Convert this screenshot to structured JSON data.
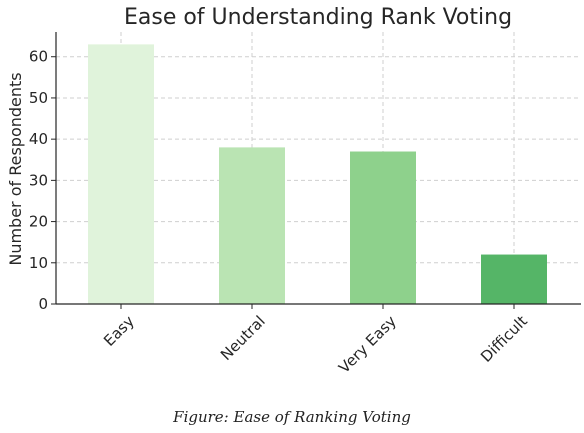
{
  "chart_data": {
    "type": "bar",
    "title": "Ease of Understanding Rank Voting",
    "xlabel": "",
    "ylabel": "Number of Respondents",
    "categories": [
      "Easy",
      "Neutral",
      "Very Easy",
      "Difficult"
    ],
    "values": [
      63,
      38,
      37,
      12
    ],
    "ylim": [
      0,
      66
    ],
    "yticks": [
      0,
      10,
      20,
      30,
      40,
      50,
      60
    ],
    "grid": true,
    "colors": [
      "#e0f3db",
      "#bae4b3",
      "#8ed18c",
      "#55b567"
    ]
  },
  "caption": "Figure: Ease of Ranking Voting"
}
